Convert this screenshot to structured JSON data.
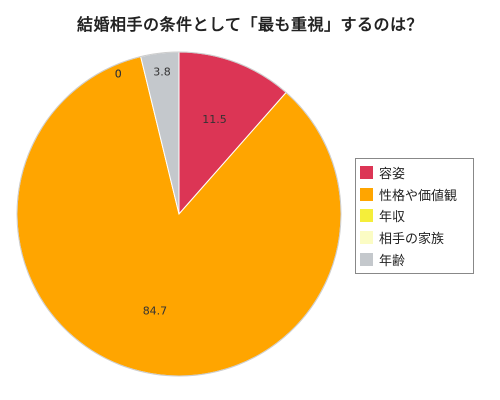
{
  "chart_data": {
    "type": "pie",
    "title": "結婚相手の条件として「最も重視」するのは？",
    "start_angle_deg": 0,
    "direction": "clockwise",
    "slices": [
      {
        "label": "容姿",
        "value": 11.5,
        "color": "#dc3555",
        "data_label": "11.5"
      },
      {
        "label": "性格や価値観",
        "value": 84.7,
        "color": "#ffa500",
        "data_label": "84.7"
      },
      {
        "label": "年収",
        "value": 0,
        "color": "#f5ee3a",
        "data_label": "0"
      },
      {
        "label": "相手の家族",
        "value": 0,
        "color": "#fbfcc4",
        "data_label": "0"
      },
      {
        "label": "年齢",
        "value": 3.8,
        "color": "#c4c8cc",
        "data_label": "3.8"
      }
    ],
    "legend": {
      "position": "right"
    }
  }
}
